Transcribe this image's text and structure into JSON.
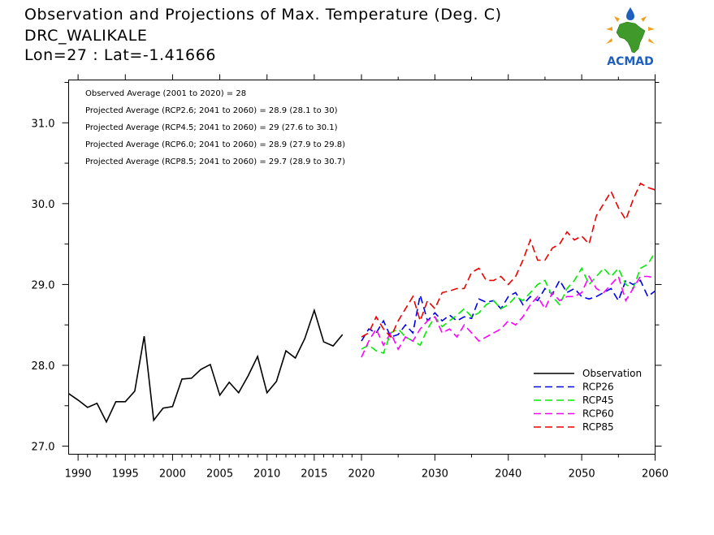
{
  "header": {
    "title": "Observation and Projections of Max. Temperature (Deg. C)",
    "location": "DRC_WALIKALE",
    "coords": "Lon=27 : Lat=-1.41666"
  },
  "logo": {
    "text": "ACMAD",
    "colors": {
      "africa": "#3f9a2b",
      "drop": "#1f5fbf",
      "rays": "#f0a020",
      "text": "#1f5fbf"
    }
  },
  "annotations": [
    "Observed Average (2001 to 2020) = 28",
    "Projected Average (RCP2.6; 2041 to 2060) = 28.9 (28.1 to 30)",
    "Projected Average (RCP4.5; 2041 to 2060) = 29 (27.6 to 30.1)",
    "Projected Average (RCP6.0; 2041 to 2060) = 28.9 (27.9 to 29.8)",
    "Projected Average (RCP8.5; 2041 to 2060) = 29.7 (28.9 to 30.7)"
  ],
  "chart_data": {
    "type": "line",
    "title": "Observation and Projections of Max. Temperature (Deg. C)",
    "xlabel": "",
    "ylabel": "",
    "ylim": [
      26.9,
      31.53
    ],
    "yticks": [
      27.0,
      28.0,
      29.0,
      30.0,
      31.0
    ],
    "ytick_labels": [
      "27.0",
      "28.0",
      "29.0",
      "30.0",
      "31.0"
    ],
    "x_segments": [
      {
        "from": 1989,
        "to": 2020,
        "ticks": [
          1990,
          1995,
          2000,
          2005,
          2010,
          2015,
          2020
        ]
      },
      {
        "from": 2020,
        "to": 2060,
        "ticks": [
          2030,
          2040,
          2050,
          2060
        ]
      }
    ],
    "xtick_labels": [
      "1990",
      "1995",
      "2000",
      "2005",
      "2010",
      "2015",
      "2020",
      "2030",
      "2040",
      "2050",
      "2060"
    ],
    "legend_position": "bottom-right",
    "series": [
      {
        "name": "Observation",
        "color": "#000000",
        "dash": "solid",
        "x_start": 1989,
        "values": [
          27.65,
          27.57,
          27.48,
          27.53,
          27.3,
          27.55,
          27.55,
          27.68,
          28.36,
          27.32,
          27.47,
          27.49,
          27.83,
          27.84,
          27.95,
          28.01,
          27.63,
          27.79,
          27.66,
          27.87,
          28.11,
          27.66,
          27.8,
          28.18,
          28.09,
          28.33,
          28.68,
          28.29,
          28.24,
          28.38
        ]
      },
      {
        "name": "RCP26",
        "color": "#0000ee",
        "dash": "dashed",
        "x_start": 2020,
        "values": [
          28.3,
          28.45,
          28.4,
          28.55,
          28.35,
          28.38,
          28.5,
          28.4,
          28.87,
          28.55,
          28.65,
          28.55,
          28.62,
          28.55,
          28.6,
          28.58,
          28.82,
          28.78,
          28.8,
          28.7,
          28.85,
          28.9,
          28.75,
          28.85,
          28.8,
          28.95,
          28.88,
          29.05,
          28.9,
          28.95,
          28.85,
          28.82,
          28.85,
          28.9,
          28.95,
          28.8,
          29.05,
          29.0,
          29.05,
          28.85,
          28.92
        ]
      },
      {
        "name": "RCP45",
        "color": "#00ee00",
        "dash": "dashed",
        "x_start": 2020,
        "values": [
          28.2,
          28.25,
          28.18,
          28.15,
          28.4,
          28.45,
          28.35,
          28.3,
          28.25,
          28.45,
          28.6,
          28.48,
          28.55,
          28.62,
          28.7,
          28.6,
          28.65,
          28.75,
          28.8,
          28.7,
          28.75,
          28.85,
          28.8,
          28.9,
          29.0,
          29.05,
          28.85,
          28.75,
          28.95,
          29.05,
          29.2,
          29.0,
          29.1,
          29.2,
          29.1,
          29.2,
          29.0,
          28.95,
          29.2,
          29.25,
          29.4
        ]
      },
      {
        "name": "RCP60",
        "color": "#ff00ff",
        "dash": "dashed",
        "x_start": 2020,
        "values": [
          28.1,
          28.3,
          28.45,
          28.25,
          28.4,
          28.2,
          28.35,
          28.3,
          28.45,
          28.55,
          28.6,
          28.4,
          28.45,
          28.35,
          28.5,
          28.4,
          28.3,
          28.35,
          28.4,
          28.45,
          28.55,
          28.5,
          28.6,
          28.75,
          28.85,
          28.7,
          28.9,
          28.8,
          28.85,
          28.85,
          28.9,
          29.1,
          28.95,
          28.9,
          29.0,
          29.1,
          28.8,
          28.95,
          29.1,
          29.1,
          29.08
        ]
      },
      {
        "name": "RCP85",
        "color": "#ee0000",
        "dash": "dashed",
        "x_start": 2020,
        "values": [
          28.35,
          28.4,
          28.6,
          28.45,
          28.35,
          28.55,
          28.7,
          28.85,
          28.55,
          28.8,
          28.7,
          28.9,
          28.92,
          28.95,
          28.95,
          29.15,
          29.2,
          29.05,
          29.05,
          29.1,
          29.0,
          29.1,
          29.3,
          29.55,
          29.3,
          29.3,
          29.45,
          29.5,
          29.65,
          29.55,
          29.6,
          29.5,
          29.85,
          30.0,
          30.15,
          29.95,
          29.8,
          30.05,
          30.25,
          30.2,
          30.17
        ]
      }
    ]
  }
}
